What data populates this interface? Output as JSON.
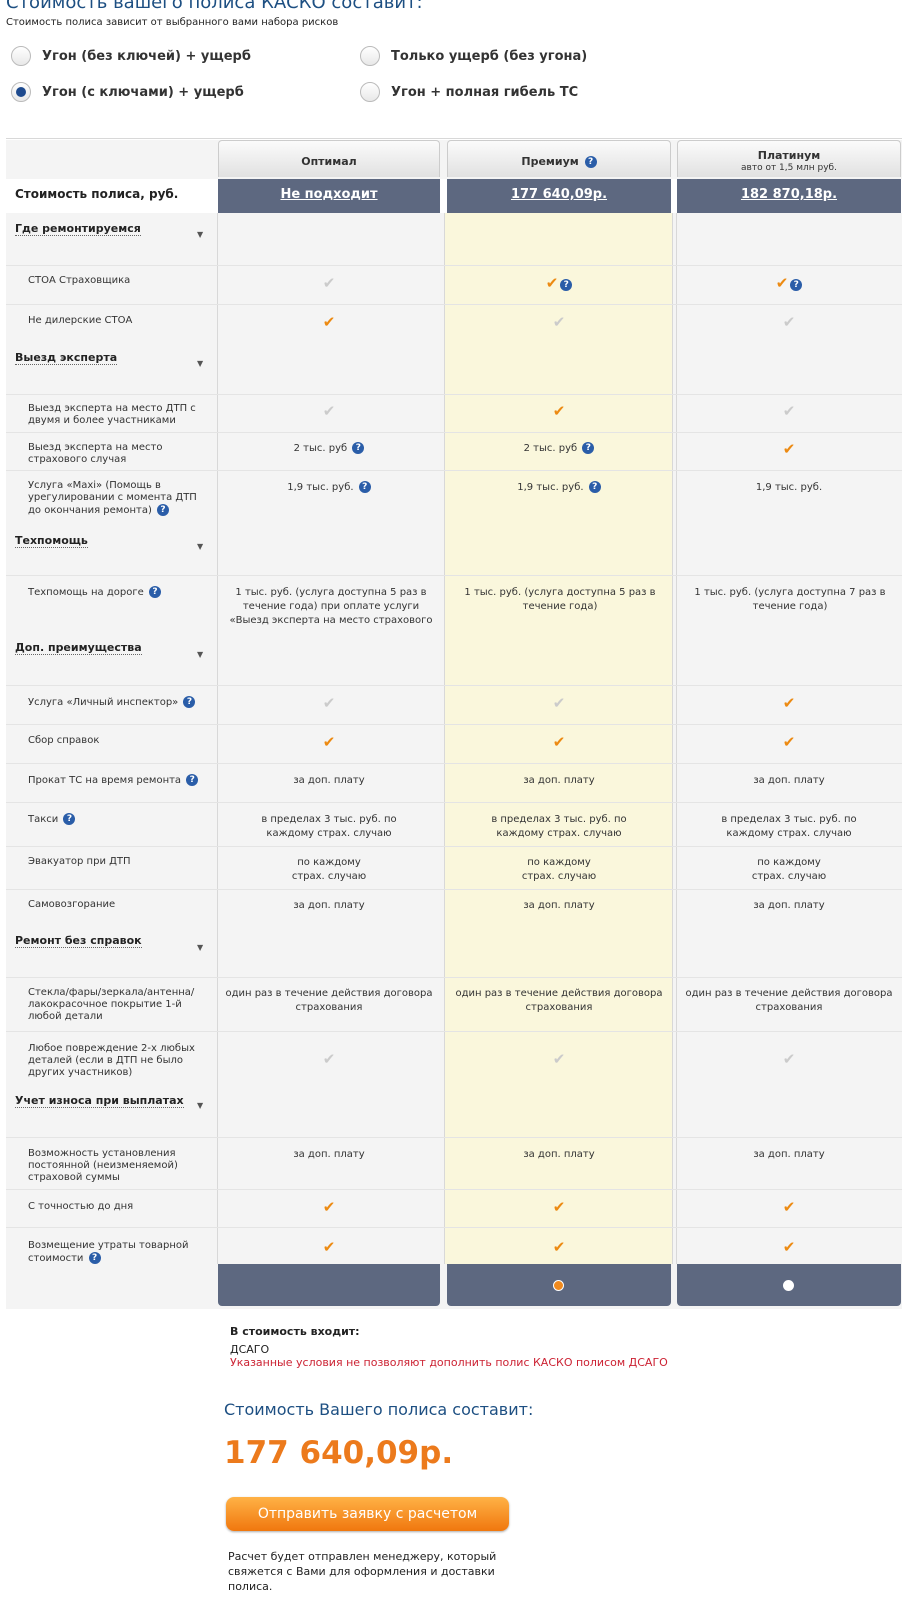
{
  "header": {
    "title": "Стоимость вашего полиса КАСКО составит:",
    "subtitle": "Стоимость полиса зависит от выбранного вами набора рисков"
  },
  "risk_options": [
    {
      "label": "Угон (без ключей) + ущерб",
      "selected": false
    },
    {
      "label": "Только ущерб (без угона)",
      "selected": false
    },
    {
      "label": "Угон (с ключами) + ущерб",
      "selected": true
    },
    {
      "label": "Угон + полная гибель ТС",
      "selected": false
    }
  ],
  "plans": [
    {
      "name": "Оптимал",
      "note": "",
      "price": "Не подходит"
    },
    {
      "name": "Премиум",
      "note": "",
      "price": "177 640,09р."
    },
    {
      "name": "Платинум",
      "note": "авто от 1,5 млн руб.",
      "price": "182 870,18р."
    }
  ],
  "price_row_label": "Стоимость полиса, руб.",
  "sections": {
    "repair": "Где ремонтируемся",
    "expert": "Выезд эксперта",
    "tech": "Техпомощь",
    "extra": "Доп. преимущества",
    "nodocs": "Ремонт без справок",
    "wear": "Учет износа при выплатах"
  },
  "rows": {
    "stoa_insurer": "СТОА Страховщика",
    "non_dealer": "Не дилерские СТОА",
    "expert_dtp": "Выезд эксперта на место ДТП с двумя и более участниками",
    "expert_case": "Выезд эксперта на место страхового случая",
    "maxi": "Услуга «Maxi» (Помощь в урегулировании с момента ДТП до окончания ремонта)",
    "road_help": "Техпомощь на дороге",
    "inspector": "Услуга «Личный инспектор»",
    "docs": "Сбор справок",
    "rental": "Прокат ТС на время ремонта",
    "taxi": "Такси",
    "tow": "Эвакуатор при ДТП",
    "fire": "Самовозгорание",
    "glass": "Стекла/фары/зеркала/антенна/лакокрасочное покрытие 1-й любой детали",
    "any2": "Любое повреждение 2-х любых деталей (если в ДТП не было других участников)",
    "fixed_sum": "Возможность установления постоянной (неизменяемой) страховой суммы",
    "day_precise": "С точностью до дня",
    "utr": "Возмещение утраты товарной стоимости"
  },
  "values": {
    "two_k": "2 тыс. руб",
    "maxi_val": "1,9 тыс. руб.",
    "road_optimal": "1 тыс. руб. (услуга доступна 5 раз в течение года) при оплате услуги «Выезд эксперта на место страхового",
    "road_premium": "1 тыс. руб. (услуга доступна 5 раз в течение года)",
    "road_platinum": "1 тыс. руб. (услуга доступна 7 раз в течение года)",
    "extra_fee": "за доп. плату",
    "taxi_val": "в пределах 3 тыс. руб. по каждому страх. случаю",
    "tow_val": "по каждому страх. случаю",
    "once": "один раз в течение действия договора страхования"
  },
  "icons": {
    "check": "check-icon",
    "help": "help-icon"
  },
  "colors": {
    "accent": "#ec8a12",
    "dark_bar": "#5d6880",
    "highlight": "#faf7dc",
    "title_blue": "#1d4f82",
    "warning": "#c23"
  },
  "included": {
    "label": "В стоимость входит:",
    "item": "ДСАГО",
    "warning": "Указанные условия не позволяют дополнить полис КАСКО полисом ДСАГО"
  },
  "summary": {
    "title": "Стоимость Вашего полиса составит:",
    "price": "177 640,09р.",
    "button": "Отправить заявку с расчетом",
    "note": "Расчет будет отправлен менеджеру, который свяжется с Вами для оформления и доставки полиса."
  }
}
